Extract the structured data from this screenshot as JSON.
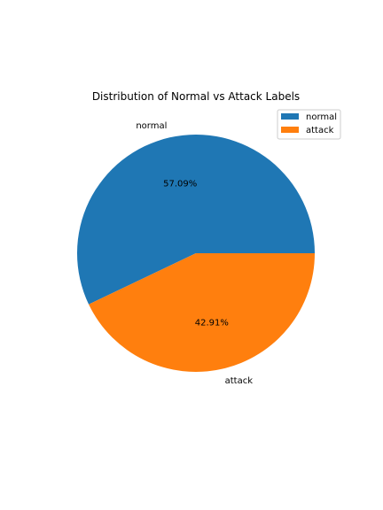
{
  "chart_data": {
    "type": "pie",
    "title": "Distribution of Normal vs Attack Labels",
    "slices": [
      {
        "label": "normal",
        "value": 57.09,
        "pct_label": "57.09%",
        "color": "#1f77b4"
      },
      {
        "label": "attack",
        "value": 42.91,
        "pct_label": "42.91%",
        "color": "#ff7f0e"
      }
    ],
    "start_angle_deg": 0,
    "direction": "counterclockwise",
    "legend": {
      "placement": "upper-right",
      "entries": [
        "normal",
        "attack"
      ]
    }
  }
}
